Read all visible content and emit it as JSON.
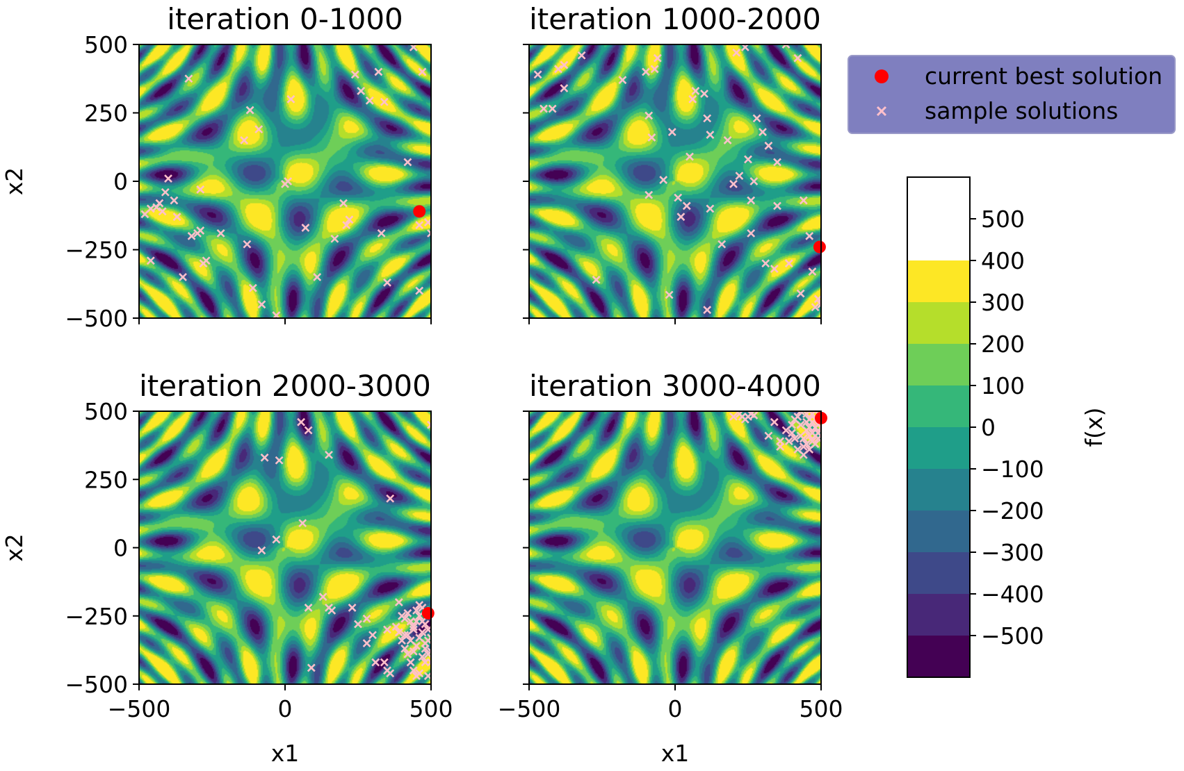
{
  "chart_data": {
    "type": "contourf",
    "colormap": "viridis",
    "colorbar": {
      "label": "f(x)",
      "levels": [
        -600,
        -500,
        -400,
        -300,
        -200,
        -100,
        0,
        100,
        200,
        300,
        400,
        500,
        600
      ],
      "ticks": [
        500,
        400,
        300,
        200,
        100,
        0,
        -100,
        -200,
        -300,
        -400,
        -500
      ],
      "tick_labels": [
        "500",
        "400",
        "300",
        "200",
        "100",
        "0",
        "−100",
        "−200",
        "−300",
        "−400",
        "−500"
      ],
      "colors": [
        "#440154",
        "#482878",
        "#3e4989",
        "#31688e",
        "#26828e",
        "#1f9e89",
        "#35b779",
        "#6ece58",
        "#b5de2b",
        "#fde725"
      ]
    },
    "legend": {
      "placement": "top-right",
      "entries": [
        {
          "label": "current best solution",
          "marker": "dot",
          "color": "#ff0000"
        },
        {
          "label": "sample solutions",
          "marker": "x",
          "color": "#ffc0cb"
        }
      ]
    },
    "axes": {
      "xlim": [
        -500,
        500
      ],
      "ylim": [
        -500,
        500
      ],
      "x_ticks": [
        -500,
        0,
        500
      ],
      "x_tick_labels": [
        "−500",
        "0",
        "500"
      ],
      "y_ticks": [
        500,
        250,
        0,
        -250,
        -500
      ],
      "y_tick_labels": [
        "500",
        "250",
        "0",
        "−250",
        "−500"
      ],
      "xlabel": "x1",
      "ylabel": "x2"
    },
    "panels": [
      {
        "title": "iteration 0-1000",
        "best": [
          460,
          -110
        ],
        "samples": [
          [
            -330,
            375
          ],
          [
            -480,
            -120
          ],
          [
            -460,
            -100
          ],
          [
            -440,
            -95
          ],
          [
            -430,
            -80
          ],
          [
            -420,
            -110
          ],
          [
            -410,
            -40
          ],
          [
            -400,
            10
          ],
          [
            -380,
            -70
          ],
          [
            -370,
            -130
          ],
          [
            -320,
            -200
          ],
          [
            -300,
            -190
          ],
          [
            -290,
            -180
          ],
          [
            -280,
            -300
          ],
          [
            -270,
            -290
          ],
          [
            -290,
            -30
          ],
          [
            -460,
            -290
          ],
          [
            -220,
            -190
          ],
          [
            -350,
            -350
          ],
          [
            -140,
            150
          ],
          [
            -120,
            260
          ],
          [
            -90,
            190
          ],
          [
            -130,
            -230
          ],
          [
            -110,
            -390
          ],
          [
            -80,
            -450
          ],
          [
            -30,
            -490
          ],
          [
            0,
            -10
          ],
          [
            10,
            0
          ],
          [
            20,
            300
          ],
          [
            70,
            -170
          ],
          [
            110,
            -350
          ],
          [
            170,
            -210
          ],
          [
            200,
            -80
          ],
          [
            210,
            -160
          ],
          [
            220,
            -140
          ],
          [
            240,
            390
          ],
          [
            260,
            330
          ],
          [
            290,
            295
          ],
          [
            320,
            400
          ],
          [
            330,
            -190
          ],
          [
            350,
            -370
          ],
          [
            340,
            290
          ],
          [
            420,
            70
          ],
          [
            460,
            -400
          ],
          [
            460,
            -160
          ],
          [
            470,
            400
          ],
          [
            490,
            -150
          ],
          [
            500,
            -190
          ],
          [
            440,
            490
          ]
        ]
      },
      {
        "title": "iteration 1000-2000",
        "best": [
          495,
          -240
        ],
        "samples": [
          [
            -470,
            390
          ],
          [
            -450,
            265
          ],
          [
            -420,
            265
          ],
          [
            -400,
            410
          ],
          [
            -380,
            425
          ],
          [
            -380,
            340
          ],
          [
            -320,
            460
          ],
          [
            -270,
            -360
          ],
          [
            -180,
            370
          ],
          [
            -100,
            400
          ],
          [
            -90,
            -50
          ],
          [
            -90,
            240
          ],
          [
            -80,
            160
          ],
          [
            -70,
            410
          ],
          [
            -60,
            450
          ],
          [
            -40,
            5
          ],
          [
            -20,
            -415
          ],
          [
            -10,
            180
          ],
          [
            10,
            -60
          ],
          [
            20,
            -130
          ],
          [
            40,
            -90
          ],
          [
            50,
            90
          ],
          [
            60,
            300
          ],
          [
            70,
            330
          ],
          [
            100,
            320
          ],
          [
            110,
            -470
          ],
          [
            110,
            230
          ],
          [
            120,
            -100
          ],
          [
            120,
            170
          ],
          [
            160,
            -230
          ],
          [
            180,
            150
          ],
          [
            200,
            -10
          ],
          [
            210,
            470
          ],
          [
            220,
            20
          ],
          [
            240,
            490
          ],
          [
            250,
            80
          ],
          [
            260,
            -70
          ],
          [
            260,
            -190
          ],
          [
            270,
            0
          ],
          [
            280,
            230
          ],
          [
            300,
            180
          ],
          [
            310,
            -300
          ],
          [
            320,
            130
          ],
          [
            340,
            -320
          ],
          [
            350,
            -90
          ],
          [
            350,
            70
          ],
          [
            380,
            500
          ],
          [
            390,
            -300
          ],
          [
            420,
            450
          ],
          [
            430,
            -410
          ],
          [
            440,
            -70
          ],
          [
            460,
            -200
          ],
          [
            470,
            -330
          ],
          [
            490,
            -430
          ],
          [
            500,
            -450
          ],
          [
            480,
            -460
          ]
        ]
      },
      {
        "title": "iteration 2000-3000",
        "best": [
          490,
          -240
        ],
        "samples": [
          [
            -80,
            -10
          ],
          [
            -30,
            30
          ],
          [
            -20,
            320
          ],
          [
            -70,
            330
          ],
          [
            55,
            460
          ],
          [
            80,
            430
          ],
          [
            60,
            90
          ],
          [
            80,
            -220
          ],
          [
            90,
            -440
          ],
          [
            130,
            -180
          ],
          [
            150,
            -220
          ],
          [
            150,
            340
          ],
          [
            160,
            -230
          ],
          [
            230,
            -220
          ],
          [
            250,
            -280
          ],
          [
            280,
            -350
          ],
          [
            280,
            -260
          ],
          [
            300,
            -320
          ],
          [
            310,
            -420
          ],
          [
            340,
            -420
          ],
          [
            350,
            -450
          ],
          [
            350,
            -300
          ],
          [
            360,
            -460
          ],
          [
            360,
            180
          ],
          [
            380,
            -290
          ],
          [
            390,
            -310
          ],
          [
            400,
            -340
          ],
          [
            410,
            -320
          ],
          [
            410,
            -370
          ],
          [
            420,
            -390
          ],
          [
            430,
            -420
          ],
          [
            440,
            -450
          ],
          [
            440,
            -380
          ],
          [
            450,
            -360
          ],
          [
            460,
            -330
          ],
          [
            470,
            -310
          ],
          [
            480,
            -350
          ],
          [
            490,
            -300
          ],
          [
            490,
            -340
          ],
          [
            500,
            -330
          ],
          [
            500,
            -380
          ],
          [
            500,
            -420
          ],
          [
            420,
            -320
          ],
          [
            430,
            -340
          ],
          [
            440,
            -300
          ],
          [
            460,
            -250
          ],
          [
            470,
            -220
          ],
          [
            480,
            -230
          ],
          [
            480,
            -280
          ],
          [
            460,
            -210
          ],
          [
            450,
            -230
          ],
          [
            390,
            -200
          ],
          [
            400,
            -250
          ],
          [
            410,
            -260
          ],
          [
            420,
            -240
          ],
          [
            430,
            -270
          ],
          [
            440,
            -290
          ],
          [
            450,
            -270
          ],
          [
            470,
            -270
          ],
          [
            470,
            -400
          ],
          [
            480,
            -420
          ],
          [
            490,
            -470
          ],
          [
            490,
            -390
          ],
          [
            480,
            -370
          ],
          [
            500,
            450
          ],
          [
            460,
            -460
          ],
          [
            450,
            -470
          ]
        ]
      },
      {
        "title": "iteration 3000-4000",
        "best": [
          500,
          475
        ],
        "samples": [
          [
            200,
            480
          ],
          [
            220,
            490
          ],
          [
            230,
            480
          ],
          [
            240,
            470
          ],
          [
            250,
            480
          ],
          [
            260,
            490
          ],
          [
            270,
            485
          ],
          [
            320,
            410
          ],
          [
            340,
            460
          ],
          [
            360,
            370
          ],
          [
            380,
            430
          ],
          [
            390,
            390
          ],
          [
            400,
            420
          ],
          [
            410,
            400
          ],
          [
            400,
            450
          ],
          [
            410,
            470
          ],
          [
            420,
            480
          ],
          [
            430,
            500
          ],
          [
            430,
            450
          ],
          [
            430,
            410
          ],
          [
            420,
            360
          ],
          [
            440,
            400
          ],
          [
            440,
            370
          ],
          [
            440,
            340
          ],
          [
            450,
            490
          ],
          [
            450,
            460
          ],
          [
            450,
            430
          ],
          [
            450,
            380
          ],
          [
            460,
            500
          ],
          [
            460,
            470
          ],
          [
            460,
            440
          ],
          [
            460,
            410
          ],
          [
            460,
            360
          ],
          [
            470,
            490
          ],
          [
            470,
            460
          ],
          [
            470,
            420
          ],
          [
            470,
            390
          ],
          [
            480,
            470
          ],
          [
            480,
            440
          ],
          [
            480,
            410
          ],
          [
            480,
            380
          ],
          [
            480,
            500
          ],
          [
            490,
            490
          ],
          [
            490,
            450
          ],
          [
            490,
            420
          ],
          [
            490,
            400
          ],
          [
            500,
            470
          ],
          [
            500,
            440
          ],
          [
            500,
            410
          ],
          [
            360,
            390
          ]
        ]
      }
    ]
  }
}
